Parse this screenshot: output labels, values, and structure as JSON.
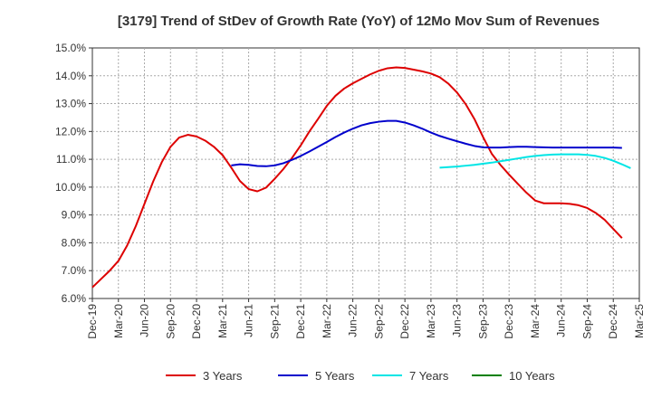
{
  "chart_data": {
    "type": "line",
    "title": "[3179]  Trend of StDev of Growth Rate (YoY) of 12Mo Mov Sum of Revenues",
    "xlabel": "",
    "ylabel": "",
    "x_ticks": [
      "Dec-19",
      "Mar-20",
      "Jun-20",
      "Sep-20",
      "Dec-20",
      "Mar-21",
      "Jun-21",
      "Sep-21",
      "Dec-21",
      "Mar-22",
      "Jun-22",
      "Sep-22",
      "Dec-22",
      "Mar-23",
      "Jun-23",
      "Sep-23",
      "Dec-23",
      "Mar-24",
      "Jun-24",
      "Sep-24",
      "Dec-24",
      "Mar-25"
    ],
    "y_ticks": [
      "6.0%",
      "7.0%",
      "8.0%",
      "9.0%",
      "10.0%",
      "11.0%",
      "12.0%",
      "13.0%",
      "14.0%",
      "15.0%"
    ],
    "ylim": [
      6.0,
      15.0
    ],
    "grid": true,
    "legend_position": "bottom",
    "series": [
      {
        "name": "3 Years",
        "color": "#dd0000",
        "start": 0,
        "values": [
          6.4,
          6.7,
          7.0,
          7.35,
          7.9,
          8.6,
          9.4,
          10.2,
          10.9,
          11.45,
          11.78,
          11.88,
          11.82,
          11.67,
          11.45,
          11.15,
          10.7,
          10.22,
          9.93,
          9.85,
          9.98,
          10.3,
          10.65,
          11.05,
          11.5,
          12.0,
          12.45,
          12.92,
          13.28,
          13.54,
          13.73,
          13.89,
          14.05,
          14.18,
          14.27,
          14.3,
          14.28,
          14.22,
          14.16,
          14.08,
          13.95,
          13.72,
          13.4,
          12.98,
          12.45,
          11.8,
          11.2,
          10.8,
          10.45,
          10.12,
          9.8,
          9.52,
          9.42,
          9.42,
          9.42,
          9.4,
          9.35,
          9.25,
          9.07,
          8.83,
          8.5,
          8.17
        ]
      },
      {
        "name": "5 Years",
        "color": "#0000cc",
        "start": 16,
        "values": [
          10.78,
          10.82,
          10.8,
          10.76,
          10.75,
          10.78,
          10.86,
          10.98,
          11.12,
          11.28,
          11.45,
          11.62,
          11.8,
          11.96,
          12.1,
          12.22,
          12.3,
          12.35,
          12.38,
          12.38,
          12.32,
          12.22,
          12.1,
          11.96,
          11.84,
          11.74,
          11.65,
          11.56,
          11.48,
          11.43,
          11.42,
          11.42,
          11.44,
          11.45,
          11.45,
          11.44,
          11.43,
          11.42,
          11.42,
          11.42,
          11.42,
          11.42,
          11.42,
          11.42,
          11.42,
          11.41
        ]
      },
      {
        "name": "7 Years",
        "color": "#00e5e5",
        "start": 40,
        "values": [
          10.7,
          10.72,
          10.74,
          10.77,
          10.8,
          10.84,
          10.88,
          10.93,
          10.98,
          11.03,
          11.08,
          11.12,
          11.15,
          11.17,
          11.18,
          11.18,
          11.18,
          11.16,
          11.12,
          11.05,
          10.95,
          10.82,
          10.68
        ]
      },
      {
        "name": "10 Years",
        "color": "#008000",
        "start": 0,
        "values": []
      }
    ]
  }
}
